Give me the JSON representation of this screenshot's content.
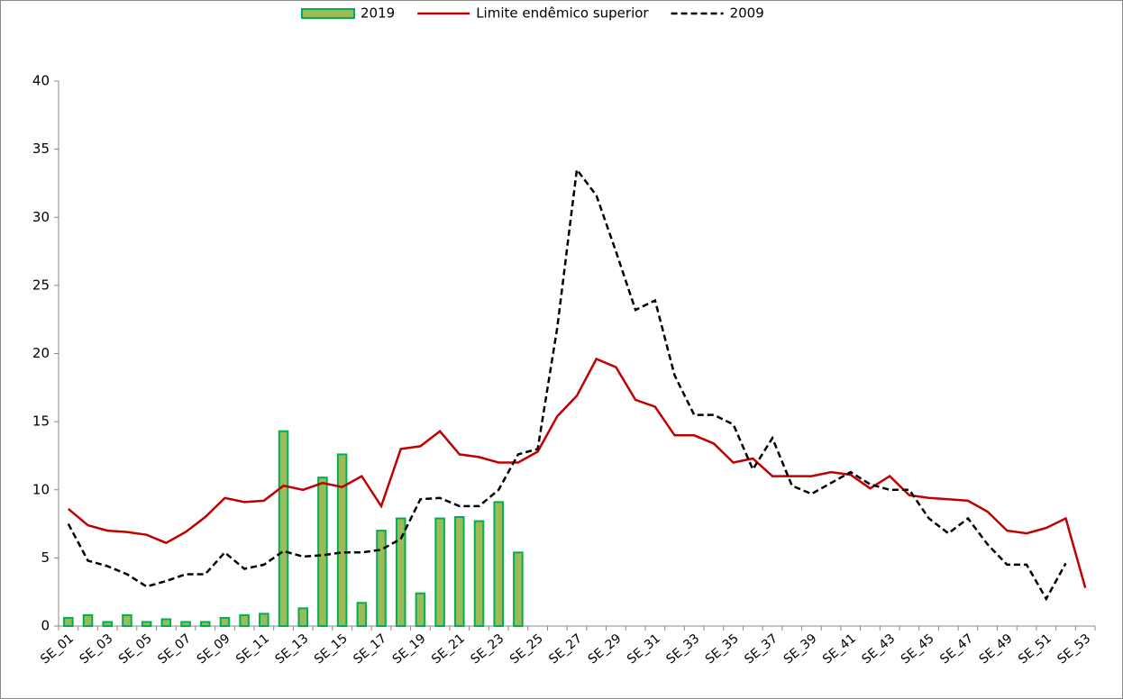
{
  "chart_data": {
    "type": "combo",
    "categories": [
      "SE_01",
      null,
      "SE_03",
      null,
      "SE_05",
      null,
      "SE_07",
      null,
      "SE_09",
      null,
      "SE_11",
      null,
      "SE_13",
      null,
      "SE_15",
      null,
      "SE_17",
      null,
      "SE_19",
      null,
      "SE_21",
      null,
      "SE_23",
      null,
      "SE_25",
      null,
      "SE_27",
      null,
      "SE_29",
      null,
      "SE_31",
      null,
      "SE_33",
      null,
      "SE_35",
      null,
      "SE_37",
      null,
      "SE_39",
      null,
      "SE_41",
      null,
      "SE_43",
      null,
      "SE_45",
      null,
      "SE_47",
      null,
      "SE_49",
      null,
      "SE_51",
      null,
      "SE_53"
    ],
    "series": [
      {
        "name": "2019",
        "type": "bar",
        "color": "#9bbb59",
        "edge": "#00b050",
        "values": [
          0.6,
          0.8,
          0.3,
          0.8,
          0.3,
          0.5,
          0.3,
          0.3,
          0.6,
          0.8,
          0.9,
          14.3,
          1.3,
          10.9,
          12.6,
          1.7,
          7.0,
          7.9,
          2.4,
          7.9,
          8.0,
          7.7,
          9.1,
          5.4,
          null,
          null,
          null,
          null,
          null,
          null,
          null,
          null,
          null,
          null,
          null,
          null,
          null,
          null,
          null,
          null,
          null,
          null,
          null,
          null,
          null,
          null,
          null,
          null,
          null,
          null,
          null,
          null,
          null
        ]
      },
      {
        "name": "Limite endêmico superior",
        "type": "line",
        "color": "#c00000",
        "values": [
          8.6,
          7.4,
          7.0,
          6.9,
          6.7,
          6.1,
          6.9,
          8.0,
          9.4,
          9.1,
          9.2,
          10.3,
          10.0,
          10.5,
          10.2,
          11.0,
          8.8,
          13.0,
          13.2,
          14.3,
          12.6,
          12.4,
          12.0,
          12.0,
          12.8,
          15.4,
          16.9,
          19.6,
          19.0,
          16.6,
          16.1,
          14.0,
          14.0,
          13.4,
          12.0,
          12.3,
          11.0,
          11.0,
          11.0,
          11.3,
          11.1,
          10.1,
          11.0,
          9.6,
          9.4,
          9.3,
          9.2,
          8.4,
          7.0,
          6.8,
          7.2,
          7.9,
          2.8
        ]
      },
      {
        "name": "2009",
        "type": "line",
        "dashed": true,
        "color": "#000000",
        "values": [
          7.5,
          4.8,
          4.4,
          3.8,
          2.9,
          3.3,
          3.8,
          3.8,
          5.4,
          4.2,
          4.5,
          5.5,
          5.1,
          5.2,
          5.4,
          5.4,
          5.6,
          6.4,
          9.3,
          9.4,
          8.8,
          8.8,
          10.0,
          12.6,
          13.0,
          21.9,
          33.5,
          31.6,
          27.5,
          23.2,
          23.9,
          18.4,
          15.5,
          15.5,
          14.8,
          11.5,
          13.8,
          10.3,
          9.7,
          10.5,
          11.3,
          10.4,
          10.0,
          10.0,
          7.9,
          6.8,
          7.9,
          6.0,
          4.5,
          4.5,
          2.0,
          4.6,
          null
        ]
      }
    ],
    "ylim": [
      0,
      40
    ],
    "yticks": [
      0,
      5,
      10,
      15,
      20,
      25,
      30,
      35,
      40
    ],
    "grid": false,
    "legend": "top"
  }
}
